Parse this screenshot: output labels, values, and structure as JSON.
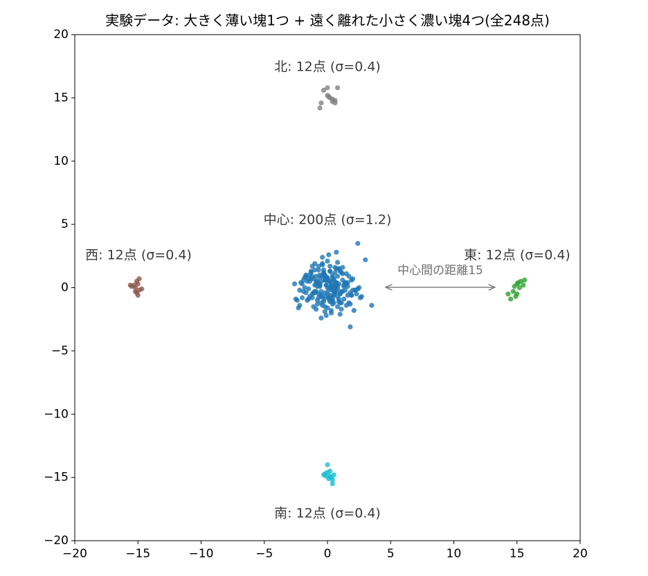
{
  "chart_data": {
    "type": "scatter",
    "title": "実験データ: 大きく薄い塊1つ + 遠く離れた小さく濃い塊4つ(全248点)",
    "annotations": [
      "北: 12点 (σ=0.4)",
      "中心: 200点 (σ=1.2)",
      "西: 12点 (σ=0.4)",
      "東: 12点 (σ=0.4)",
      "南: 12点 (σ=0.4)",
      "中心間の距離15"
    ],
    "xlim": [
      -20,
      20
    ],
    "ylim": [
      -20,
      20
    ],
    "xticks": [
      {
        "value": -20,
        "label": "−20"
      },
      {
        "value": -15,
        "label": "−15"
      },
      {
        "value": -10,
        "label": "−10"
      },
      {
        "value": -5,
        "label": "−5"
      },
      0,
      5,
      10,
      15,
      20
    ],
    "yticks": [
      {
        "value": -20,
        "label": "−20"
      },
      {
        "value": -15,
        "label": "−15"
      },
      {
        "value": -10,
        "label": "−10"
      },
      {
        "value": -5,
        "label": "−5"
      },
      0,
      5,
      10,
      15,
      20
    ],
    "series": [
      {
        "color": "#1f77b4",
        "x": [
          0.3,
          -0.5,
          1.1,
          -1.2,
          0.8,
          -0.2,
          0.5,
          -0.9,
          1.6,
          -1.7,
          0.1,
          2.4,
          -0.4,
          0.9,
          -1.1,
          0.2,
          1.3,
          -0.7,
          0.6,
          -2.3,
          -0.1,
          0.7,
          -1.4,
          1.9,
          0.4,
          -0.6,
          1.0,
          -0.3,
          2.2,
          -1.9,
          0.0,
          -0.8,
          1.4,
          0.3,
          -1.3,
          0.6,
          -0.2,
          1.7,
          -1.0,
          0.5,
          2.6,
          -2.0,
          0.2,
          -0.5,
          1.2,
          -0.1,
          0.8,
          -1.5,
          0.4,
          -0.9,
          1.5,
          3.0,
          -0.3,
          0.1,
          -1.2,
          0.9,
          -0.6,
          2.0,
          -1.8,
          0.2,
          0.7,
          -0.4,
          1.1,
          -2.6,
          0.3,
          -0.7,
          1.8,
          -0.2,
          0.6,
          -1.1,
          0.0,
          1.3,
          -1.6,
          0.5,
          -0.3,
          2.3,
          -0.8,
          0.4,
          -1.4,
          1.0,
          3.5,
          -0.1,
          0.6,
          -1.0,
          1.6,
          -0.5,
          0.2,
          -2.2,
          0.9,
          -0.2,
          1.2,
          -0.9,
          0.3,
          -1.7,
          0.8,
          -0.4,
          2.1,
          -0.6,
          0.1,
          -1.3,
          0.5,
          1.9,
          -0.1,
          -2.4,
          0.7,
          -0.8,
          1.4,
          0.0,
          -1.2,
          0.6,
          -0.3,
          1.0,
          -1.9,
          0.2,
          2.5,
          -0.5,
          0.8,
          -1.0,
          0.4,
          -0.2,
          1.7,
          -1.5,
          0.3,
          -0.7,
          1.1,
          -2.1,
          0.0,
          0.9,
          -0.4,
          1.5,
          -1.1,
          0.2,
          -0.6,
          2.0,
          -0.9,
          0.5,
          -1.6,
          1.2,
          -0.1,
          0.7,
          1.8,
          -0.3,
          0.4,
          -1.8,
          1.3,
          -0.8,
          0.1,
          2.7,
          -0.5,
          0.6,
          -1.3,
          0.3,
          -2.5,
          1.0,
          -0.2,
          0.8,
          -0.7,
          1.6,
          -1.0,
          0.2,
          -0.2,
          0.4,
          -1.4,
          1.1,
          -0.6,
          2.2,
          0.0,
          -1.1,
          0.5,
          -0.4,
          1.4,
          -2.0,
          0.7,
          -0.1,
          1.9,
          -0.8,
          0.3,
          -1.5,
          0.9,
          1.8,
          0.1,
          -0.9,
          1.2,
          -0.3,
          0.6,
          -1.7,
          2.4,
          -0.5,
          0.0,
          1.0,
          -1.2,
          0.4,
          -0.7,
          1.5,
          -2.2,
          0.2,
          -0.2,
          0.8,
          -1.0,
          0.7
        ],
        "y": [
          0.4,
          -0.3,
          1.2,
          -0.8,
          0.1,
          -1.5,
          0.7,
          0.3,
          -0.6,
          1.0,
          -0.2,
          3.5,
          0.9,
          -1.1,
          -0.4,
          0.5,
          -0.9,
          1.4,
          -0.1,
          -1.6,
          0.2,
          2.8,
          -0.7,
          0.6,
          -1.3,
          0.8,
          -0.5,
          1.1,
          -0.2,
          -0.3,
          0.0,
          -1.0,
          0.4,
          -1.8,
          0.7,
          1.6,
          -0.4,
          -1.2,
          1.9,
          -0.6,
          -0.8,
          0.3,
          1.3,
          -2.4,
          0.6,
          0.2,
          -0.7,
          -0.1,
          1.0,
          0.9,
          -1.4,
          2.2,
          -0.9,
          0.5,
          -0.5,
          1.5,
          0.1,
          0.7,
          0.0,
          -1.1,
          0.3,
          1.8,
          -0.3,
          0.3,
          -2.0,
          -0.8,
          -1.3,
          0.6,
          1.2,
          -1.5,
          2.1,
          0.1,
          0.5,
          -0.6,
          1.4,
          -0.5,
          0.4,
          -1.0,
          1.0,
          -2.1,
          -1.4,
          0.8,
          -0.4,
          0.2,
          0.4,
          -1.2,
          1.7,
          -0.2,
          -0.9,
          0.6,
          1.1,
          -1.7,
          0.0,
          0.9,
          -0.1,
          2.4,
          -1.8,
          0.3,
          -0.8,
          1.2,
          -0.3,
          -0.6,
          0.7,
          -1.0,
          1.5,
          0.5,
          -0.2,
          -1.6,
          0.9,
          0.2,
          -1.1,
          1.3,
          0.6,
          0.0,
          0.0,
          -0.7,
          2.0,
          -0.4,
          0.8,
          -1.9,
          0.9,
          -0.9,
          0.1,
          1.7,
          -1.2,
          0.4,
          -0.5,
          0.3,
          -1.4,
          1.1,
          0.7,
          -0.8,
          1.0,
          -0.2,
          -0.3,
          0.6,
          -1.0,
          1.6,
          -2.2,
          0.4,
          -0.4,
          1.2,
          -0.9,
          0.8,
          0.2,
          -1.3,
          2.6,
          -0.7,
          0.5,
          -0.1,
          1.3,
          0.2,
          -0.9,
          -0.5,
          0.9,
          -1.5,
          0.3,
          0.1,
          1.4,
          -0.6,
          1.0,
          -0.2,
          0.5,
          -1.7,
          0.2,
          -0.2,
          0.7,
          -0.4,
          -1.2,
          1.9,
          0.4,
          -0.8,
          -0.3,
          0.6,
          -0.6,
          0.1,
          -1.1,
          0.7,
          1.5,
          -3.1,
          -0.9,
          0.5,
          -0.3,
          1.1,
          0.2,
          -0.4,
          -0.1,
          -0.6,
          0.8,
          -1.2,
          1.7,
          0.0,
          -0.5,
          0.3,
          -1.4,
          1.3,
          -0.7,
          0.9,
          -0.3,
          0.4
        ]
      },
      {
        "color": "#7f7f7f",
        "x": [
          -0.3,
          0.0,
          0.8,
          -0.5,
          -0.6,
          0.0,
          0.2,
          0.4,
          0.6,
          0.4,
          0.6,
          0.1
        ],
        "y": [
          15.6,
          15.8,
          15.8,
          14.6,
          14.2,
          15.2,
          15.0,
          14.9,
          14.8,
          14.7,
          14.6,
          15.1
        ]
      },
      {
        "color": "#17becf",
        "x": [
          0.0,
          0.2,
          -0.3,
          -0.1,
          0.3,
          0.5,
          0.1,
          0.4,
          -0.2,
          0.0,
          0.2,
          0.4
        ],
        "y": [
          -14.0,
          -14.5,
          -14.8,
          -14.9,
          -15.0,
          -14.8,
          -15.1,
          -15.5,
          -14.7,
          -14.6,
          -14.9,
          -15.2
        ]
      },
      {
        "color": "#2ca02c",
        "x": [
          14.3,
          14.5,
          14.7,
          15.0,
          15.3,
          15.6,
          15.0,
          15.2,
          15.5,
          14.9,
          15.1,
          14.8
        ],
        "y": [
          -0.5,
          -0.9,
          -0.3,
          0.3,
          0.5,
          0.6,
          -0.5,
          0.0,
          0.2,
          -0.7,
          0.4,
          0.1
        ]
      },
      {
        "color": "#8c564b",
        "x": [
          -15.6,
          -15.3,
          -15.0,
          -14.9,
          -15.1,
          -14.7,
          -15.2,
          -15.0,
          -15.5,
          -14.9,
          -15.2,
          -15.1
        ],
        "y": [
          0.2,
          0.2,
          0.3,
          0.7,
          0.5,
          -0.1,
          -0.3,
          -0.6,
          0.1,
          -0.2,
          0.0,
          -0.4
        ]
      }
    ]
  }
}
